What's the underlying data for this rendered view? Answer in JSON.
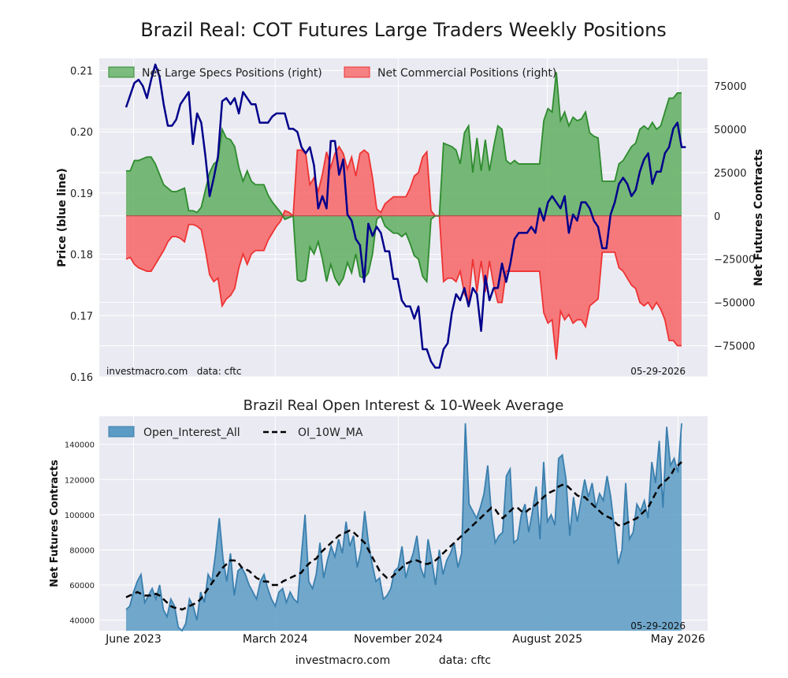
{
  "title": "Brazil Real: COT Futures Large Traders Weekly Positions",
  "footer": {
    "left": "investmacro.com",
    "right": "data: cftc"
  },
  "colors": {
    "background": "#ffffff",
    "plot_bg": "#eaeaf2",
    "grid": "#ffffff",
    "price_line": "#00008b",
    "specs_fill": "#4ca64c",
    "specs_line": "#2e8b2e",
    "commercial_fill": "#f75c5c",
    "commercial_line": "#ee3333",
    "oi_fill": "#5b9bc4",
    "oi_line": "#3a7fae",
    "ma_line": "#000000"
  },
  "chart_data": [
    {
      "type": "area",
      "title": "Brazil Real: COT Futures Large Traders Weekly Positions",
      "ylabel": "Price (blue line)",
      "y2label": "Net Futures Contracts",
      "ylim": [
        0.16,
        0.212
      ],
      "y2lim": [
        -93000,
        91000
      ],
      "yticks": [
        0.16,
        0.17,
        0.18,
        0.19,
        0.2,
        0.21
      ],
      "ytick_labels": [
        "0.16",
        "0.17",
        "0.18",
        "0.19",
        "0.20",
        "0.21"
      ],
      "y2ticks": [
        75000,
        50000,
        25000,
        0,
        -25000,
        -50000,
        -75000
      ],
      "y2tick_labels": [
        "75000",
        "50000",
        "25000",
        "0",
        "−25000",
        "−50000",
        "−75000"
      ],
      "legend_placement": "top-left",
      "grid": true,
      "annotation_left": "investmacro.com   data: cftc",
      "annotation_right": "05-29-2026",
      "series": [
        {
          "name": "Net Large Specs Positions (right)",
          "axis": "right",
          "kind": "area",
          "values": [
            26000,
            26000,
            32000,
            32000,
            33000,
            34000,
            34000,
            30000,
            24000,
            18000,
            16000,
            14000,
            14000,
            15000,
            16000,
            3000,
            3000,
            2000,
            5000,
            15000,
            25000,
            30000,
            32000,
            50000,
            45000,
            44000,
            40000,
            28000,
            20000,
            26000,
            20000,
            18000,
            18000,
            18000,
            12000,
            8000,
            5000,
            2000,
            -2000,
            -1000,
            0,
            -37000,
            -38000,
            -37000,
            -18000,
            -22000,
            -15000,
            -25000,
            -38000,
            -28000,
            -36000,
            -40000,
            -36000,
            -27000,
            -33000,
            -22000,
            -35000,
            -36000,
            -33000,
            -22000,
            -2000,
            0,
            -6000,
            -8000,
            -10000,
            -10000,
            -12000,
            -10000,
            -16000,
            -23000,
            -25000,
            -35000,
            -38000,
            -2000,
            0,
            0,
            42000,
            41000,
            40000,
            38000,
            30000,
            48000,
            52000,
            25000,
            45000,
            26000,
            44000,
            26000,
            40000,
            52000,
            50000,
            32000,
            30000,
            32000,
            30000,
            30000,
            30000,
            30000,
            30000,
            30000,
            55000,
            62000,
            60000,
            83000,
            55000,
            60000,
            52000,
            57000,
            55000,
            56000,
            60000,
            48000,
            46000,
            45000,
            20000,
            20000,
            20000,
            20000,
            30000,
            32000,
            36000,
            40000,
            42000,
            50000,
            52000,
            50000,
            54000,
            50000,
            52000,
            60000,
            68000,
            68000,
            71000,
            71000
          ]
        },
        {
          "name": "Net Commercial Positions (right)",
          "axis": "right",
          "kind": "area",
          "values": [
            -25000,
            -24000,
            -28000,
            -30000,
            -31000,
            -32000,
            -32000,
            -28000,
            -24000,
            -20000,
            -15000,
            -12000,
            -12000,
            -13000,
            -15000,
            -5000,
            -5000,
            -6000,
            -8000,
            -20000,
            -34000,
            -38000,
            -36000,
            -52000,
            -48000,
            -46000,
            -42000,
            -30000,
            -22000,
            -28000,
            -22000,
            -20000,
            -20000,
            -20000,
            -14000,
            -10000,
            -6000,
            -3000,
            3000,
            2000,
            0,
            38000,
            38000,
            36000,
            18000,
            22000,
            14000,
            24000,
            37000,
            28000,
            36000,
            40000,
            36000,
            27000,
            34000,
            23000,
            36000,
            38000,
            36000,
            22000,
            4000,
            2000,
            7000,
            9000,
            11000,
            11000,
            11000,
            11000,
            16000,
            23000,
            25000,
            34000,
            37000,
            3000,
            0,
            0,
            -38000,
            -36000,
            -36000,
            -38000,
            -32000,
            -45000,
            -50000,
            -25000,
            -44000,
            -26000,
            -44000,
            -26000,
            -40000,
            -50000,
            -50000,
            -32000,
            -32000,
            -32000,
            -32000,
            -32000,
            -32000,
            -32000,
            -32000,
            -32000,
            -56000,
            -62000,
            -60000,
            -83000,
            -55000,
            -60000,
            -57000,
            -62000,
            -60000,
            -60000,
            -64000,
            -52000,
            -50000,
            -48000,
            -21000,
            -21000,
            -21000,
            -21000,
            -30000,
            -32000,
            -36000,
            -40000,
            -42000,
            -50000,
            -52000,
            -50000,
            -54000,
            -50000,
            -54000,
            -60000,
            -72000,
            -72000,
            -75000,
            -75000
          ]
        },
        {
          "name": "Price",
          "axis": "left",
          "kind": "line",
          "color": "#00008b",
          "values": [
            0.204,
            0.206,
            0.208,
            0.2085,
            0.2075,
            0.2055,
            0.2085,
            0.211,
            0.209,
            0.2045,
            0.201,
            0.201,
            0.202,
            0.2045,
            0.2055,
            0.2065,
            0.198,
            0.203,
            0.2015,
            0.196,
            0.1895,
            0.1925,
            0.196,
            0.205,
            0.2055,
            0.2045,
            0.2055,
            0.203,
            0.2065,
            0.2055,
            0.2045,
            0.2045,
            0.2015,
            0.2015,
            0.2015,
            0.2025,
            0.203,
            0.203,
            0.203,
            0.2005,
            0.2005,
            0.2,
            0.1975,
            0.1965,
            0.1975,
            0.1945,
            0.1875,
            0.1895,
            0.1875,
            0.1985,
            0.1985,
            0.193,
            0.1955,
            0.1865,
            0.1855,
            0.1825,
            0.1815,
            0.1755,
            0.185,
            0.183,
            0.1845,
            0.1835,
            0.1805,
            0.1805,
            0.176,
            0.176,
            0.1725,
            0.1715,
            0.1715,
            0.1695,
            0.1715,
            0.1645,
            0.1645,
            0.1625,
            0.1615,
            0.1615,
            0.1645,
            0.1655,
            0.1705,
            0.1735,
            0.1725,
            0.1745,
            0.1715,
            0.1745,
            0.1735,
            0.1675,
            0.1765,
            0.1725,
            0.1745,
            0.1745,
            0.1785,
            0.1755,
            0.1785,
            0.1825,
            0.1835,
            0.1835,
            0.1835,
            0.1845,
            0.1835,
            0.1875,
            0.1855,
            0.1885,
            0.1895,
            0.1885,
            0.1875,
            0.1895,
            0.1835,
            0.1865,
            0.1855,
            0.1885,
            0.1885,
            0.1875,
            0.1855,
            0.1845,
            0.181,
            0.181,
            0.1865,
            0.1885,
            0.1915,
            0.1925,
            0.1915,
            0.1895,
            0.1905,
            0.1935,
            0.1955,
            0.1965,
            0.1915,
            0.1935,
            0.1935,
            0.1965,
            0.1975,
            0.2005,
            0.2015,
            0.1975,
            0.1975
          ]
        }
      ]
    },
    {
      "type": "area",
      "title": "Brazil Real Open Interest & 10-Week Average",
      "ylabel": "Net Futures Contracts",
      "ylim": [
        34000,
        156000
      ],
      "yticks": [
        40000,
        60000,
        80000,
        100000,
        120000,
        140000
      ],
      "ytick_labels": [
        "40000",
        "60000",
        "80000",
        "100000",
        "120000",
        "140000"
      ],
      "x_ticks": [
        {
          "label": "June 2023",
          "index": 2
        },
        {
          "label": "March 2024",
          "index": 40
        },
        {
          "label": "November 2024",
          "index": 73
        },
        {
          "label": "August 2025",
          "index": 113
        },
        {
          "label": "May 2026",
          "index": 148
        }
      ],
      "x_count": 150,
      "legend_placement": "top-left",
      "grid": true,
      "annotation_right": "05-29-2026",
      "series": [
        {
          "name": "Open_Interest_All",
          "kind": "area",
          "values": [
            46000,
            48000,
            56000,
            62000,
            66000,
            50000,
            54000,
            58000,
            52000,
            60000,
            46000,
            42000,
            52000,
            48000,
            36000,
            32000,
            38000,
            52000,
            48000,
            40000,
            56000,
            50000,
            66000,
            62000,
            78000,
            98000,
            75000,
            62000,
            78000,
            54000,
            68000,
            70000,
            66000,
            60000,
            56000,
            52000,
            62000,
            66000,
            58000,
            52000,
            48000,
            56000,
            58000,
            50000,
            56000,
            52000,
            50000,
            76000,
            100000,
            62000,
            58000,
            66000,
            84000,
            64000,
            74000,
            82000,
            76000,
            86000,
            78000,
            96000,
            82000,
            88000,
            70000,
            80000,
            102000,
            84000,
            72000,
            62000,
            64000,
            52000,
            54000,
            58000,
            68000,
            70000,
            82000,
            64000,
            72000,
            78000,
            88000,
            70000,
            64000,
            86000,
            74000,
            60000,
            80000,
            66000,
            74000,
            78000,
            84000,
            70000,
            78000,
            152000,
            106000,
            102000,
            98000,
            104000,
            112000,
            128000,
            100000,
            84000,
            88000,
            90000,
            122000,
            126000,
            84000,
            86000,
            100000,
            106000,
            90000,
            102000,
            116000,
            86000,
            130000,
            96000,
            100000,
            94000,
            132000,
            134000,
            120000,
            88000,
            110000,
            96000,
            108000,
            120000,
            110000,
            118000,
            104000,
            112000,
            108000,
            122000,
            110000,
            92000,
            72000,
            80000,
            118000,
            86000,
            90000,
            106000,
            102000,
            108000,
            98000,
            130000,
            118000,
            142000,
            104000,
            150000,
            128000,
            132000,
            124000,
            152000
          ]
        },
        {
          "name": "OI_10W_MA",
          "kind": "line",
          "style": "dashed",
          "values": [
            53000,
            54000,
            55000,
            56000,
            55000,
            54000,
            54000,
            54000,
            55000,
            54000,
            52000,
            50000,
            48000,
            47000,
            47000,
            46000,
            47000,
            48000,
            49000,
            50000,
            52000,
            55000,
            58000,
            61000,
            64000,
            67000,
            70000,
            72000,
            74000,
            74000,
            73000,
            70000,
            69000,
            68000,
            66000,
            64000,
            63000,
            62000,
            62000,
            60000,
            60000,
            60000,
            62000,
            63000,
            64000,
            65000,
            66000,
            67000,
            70000,
            72000,
            74000,
            75000,
            78000,
            80000,
            82000,
            84000,
            86000,
            88000,
            89000,
            90000,
            91000,
            90000,
            88000,
            86000,
            84000,
            80000,
            76000,
            72000,
            68000,
            66000,
            64000,
            64000,
            66000,
            68000,
            70000,
            72000,
            73000,
            74000,
            74000,
            73000,
            72000,
            72000,
            73000,
            74000,
            76000,
            78000,
            80000,
            82000,
            84000,
            86000,
            88000,
            90000,
            92000,
            94000,
            96000,
            98000,
            100000,
            102000,
            104000,
            103000,
            100000,
            98000,
            100000,
            102000,
            104000,
            104000,
            102000,
            101000,
            103000,
            104000,
            106000,
            108000,
            110000,
            112000,
            113000,
            114000,
            116000,
            117000,
            117000,
            115000,
            113000,
            111000,
            110000,
            110000,
            108000,
            106000,
            104000,
            102000,
            100000,
            99000,
            98000,
            96000,
            94000,
            94000,
            95000,
            96000,
            97000,
            98000,
            100000,
            102000,
            104000,
            108000,
            112000,
            116000,
            118000,
            120000,
            122000,
            126000,
            128000,
            130000
          ]
        }
      ]
    }
  ]
}
